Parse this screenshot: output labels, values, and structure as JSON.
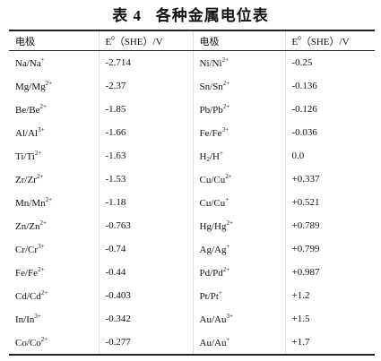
{
  "title": "表 4   各种金属电位表",
  "table": {
    "header": [
      [
        {
          "text": "电极"
        }
      ],
      [
        {
          "text": "E"
        },
        {
          "text": "0",
          "pos": "sup"
        },
        {
          "text": "（SHE）/V"
        }
      ],
      [
        {
          "text": "电极"
        }
      ],
      [
        {
          "text": "E"
        },
        {
          "text": "0",
          "pos": "sup"
        },
        {
          "text": "（SHE）/V"
        }
      ]
    ],
    "rows": [
      [
        [
          {
            "text": "Na/Na"
          },
          {
            "text": "+",
            "pos": "sup"
          }
        ],
        [
          {
            "text": "-2.714"
          }
        ],
        [
          {
            "text": "Ni/Ni"
          },
          {
            "text": "2+",
            "pos": "sup"
          }
        ],
        [
          {
            "text": "-0.25"
          }
        ]
      ],
      [
        [
          {
            "text": "Mg/Mg"
          },
          {
            "text": "2+",
            "pos": "sup"
          }
        ],
        [
          {
            "text": "-2.37"
          }
        ],
        [
          {
            "text": "Sn/Sn"
          },
          {
            "text": "2+",
            "pos": "sup"
          }
        ],
        [
          {
            "text": "-0.136"
          }
        ]
      ],
      [
        [
          {
            "text": "Be/Be"
          },
          {
            "text": "2+",
            "pos": "sup"
          }
        ],
        [
          {
            "text": "-1.85"
          }
        ],
        [
          {
            "text": "Pb/Pb"
          },
          {
            "text": "2+",
            "pos": "sup"
          }
        ],
        [
          {
            "text": "-0.126"
          }
        ]
      ],
      [
        [
          {
            "text": "Al/Al"
          },
          {
            "text": "3+",
            "pos": "sup"
          }
        ],
        [
          {
            "text": "-1.66"
          }
        ],
        [
          {
            "text": "Fe/Fe"
          },
          {
            "text": "3+",
            "pos": "sup"
          }
        ],
        [
          {
            "text": "-0.036"
          }
        ]
      ],
      [
        [
          {
            "text": "Ti/Ti"
          },
          {
            "text": "2+",
            "pos": "sup"
          }
        ],
        [
          {
            "text": "-1.63"
          }
        ],
        [
          {
            "text": "H"
          },
          {
            "text": "2",
            "pos": "sub"
          },
          {
            "text": "/H"
          },
          {
            "text": "+",
            "pos": "sup"
          }
        ],
        [
          {
            "text": "0.0"
          }
        ]
      ],
      [
        [
          {
            "text": "Zr/Zr"
          },
          {
            "text": "2+",
            "pos": "sup"
          }
        ],
        [
          {
            "text": "-1.53"
          }
        ],
        [
          {
            "text": "Cu/Cu"
          },
          {
            "text": "2+",
            "pos": "sup"
          }
        ],
        [
          {
            "text": "+0.337"
          }
        ]
      ],
      [
        [
          {
            "text": "Mn/Mn"
          },
          {
            "text": "2+",
            "pos": "sup"
          }
        ],
        [
          {
            "text": "-1.18"
          }
        ],
        [
          {
            "text": "Cu/Cu"
          },
          {
            "text": "+",
            "pos": "sup"
          }
        ],
        [
          {
            "text": "+0.521"
          }
        ]
      ],
      [
        [
          {
            "text": "Zn/Zn"
          },
          {
            "text": "2+",
            "pos": "sup"
          }
        ],
        [
          {
            "text": "-0.763"
          }
        ],
        [
          {
            "text": "Hg/Hg"
          },
          {
            "text": "2+",
            "pos": "sup"
          }
        ],
        [
          {
            "text": "+0.789"
          }
        ]
      ],
      [
        [
          {
            "text": "Cr/Cr"
          },
          {
            "text": "3+",
            "pos": "sup"
          }
        ],
        [
          {
            "text": "-0.74"
          }
        ],
        [
          {
            "text": "Ag/Ag"
          },
          {
            "text": "+",
            "pos": "sup"
          }
        ],
        [
          {
            "text": "+0.799"
          }
        ]
      ],
      [
        [
          {
            "text": "Fe/Fe"
          },
          {
            "text": "2+",
            "pos": "sup"
          }
        ],
        [
          {
            "text": "-0.44"
          }
        ],
        [
          {
            "text": "Pd/Pd"
          },
          {
            "text": "2+",
            "pos": "sup"
          }
        ],
        [
          {
            "text": "+0.987"
          }
        ]
      ],
      [
        [
          {
            "text": "Cd/Cd"
          },
          {
            "text": "2+",
            "pos": "sup"
          }
        ],
        [
          {
            "text": "-0.403"
          }
        ],
        [
          {
            "text": "Pt/Pt"
          },
          {
            "text": "+",
            "pos": "sup"
          }
        ],
        [
          {
            "text": "+1.2"
          }
        ]
      ],
      [
        [
          {
            "text": "In/In"
          },
          {
            "text": "3+",
            "pos": "sup"
          }
        ],
        [
          {
            "text": "-0.342"
          }
        ],
        [
          {
            "text": "Au/Au"
          },
          {
            "text": "3+",
            "pos": "sup"
          }
        ],
        [
          {
            "text": "+1.5"
          }
        ]
      ],
      [
        [
          {
            "text": "Co/Co"
          },
          {
            "text": "2+",
            "pos": "sup"
          }
        ],
        [
          {
            "text": "-0.277"
          }
        ],
        [
          {
            "text": "Au/Au"
          },
          {
            "text": "+",
            "pos": "sup"
          }
        ],
        [
          {
            "text": "+1.7"
          }
        ]
      ]
    ]
  }
}
